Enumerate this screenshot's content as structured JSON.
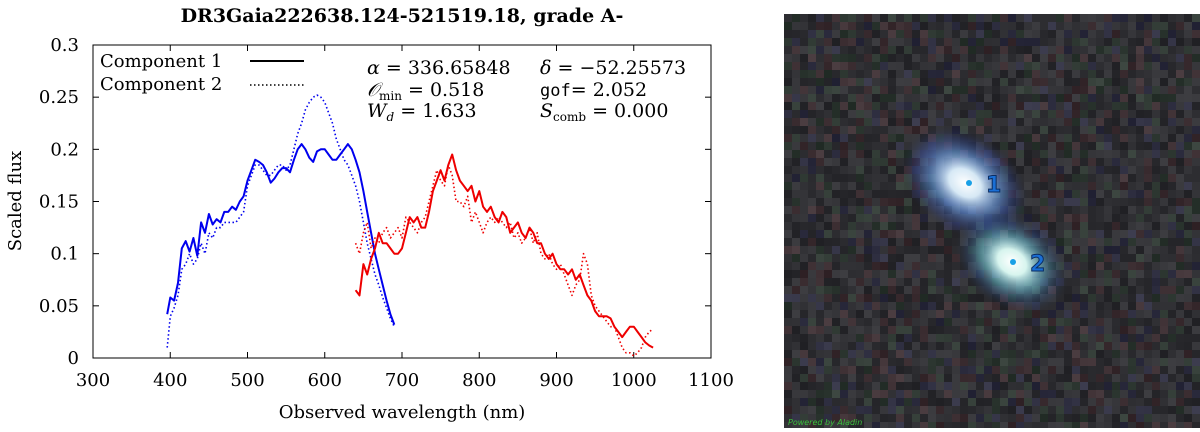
{
  "chart_data": {
    "type": "line",
    "title": "DR3Gaia222638.124-521519.18, grade A-",
    "xlabel": "Observed wavelength (nm)",
    "ylabel": "Scaled flux",
    "xlim": [
      300,
      1100
    ],
    "ylim": [
      0,
      0.3
    ],
    "x_ticks": [
      300,
      400,
      500,
      600,
      700,
      800,
      900,
      1000,
      1100
    ],
    "y_ticks": [
      0,
      0.05,
      0.1,
      0.15,
      0.2,
      0.25,
      0.3
    ],
    "x_tick_labels": [
      "300",
      "400",
      "500",
      "600",
      "700",
      "800",
      "900",
      "1000",
      "1100"
    ],
    "y_tick_labels": [
      "0",
      "0.05",
      "0.1",
      "0.15",
      "0.2",
      "0.25",
      "0.3"
    ],
    "grid": false,
    "legend_position": "top-left",
    "legend": [
      {
        "name": "Component 1",
        "style": "solid"
      },
      {
        "name": "Component 2",
        "style": "dotted"
      }
    ],
    "annotations": {
      "alpha_value": "336.65848",
      "delta_value": "−52.25573",
      "omin_value": "0.518",
      "gof_value": "2.052",
      "wd_value": "1.633",
      "scomb_value": "0.000"
    },
    "series": [
      {
        "name": "Component 1",
        "color": "#0000ee",
        "style": "solid",
        "x": [
          396,
          400,
          405,
          410,
          415,
          420,
          425,
          430,
          435,
          440,
          445,
          450,
          455,
          460,
          465,
          470,
          475,
          480,
          485,
          490,
          495,
          500,
          505,
          510,
          515,
          520,
          525,
          530,
          535,
          540,
          545,
          550,
          555,
          560,
          565,
          570,
          575,
          580,
          585,
          590,
          595,
          600,
          605,
          610,
          615,
          620,
          625,
          630,
          635,
          640,
          645,
          650,
          655,
          660,
          665,
          670,
          675,
          680,
          685,
          690
        ],
        "y": [
          0.042,
          0.058,
          0.055,
          0.072,
          0.105,
          0.112,
          0.102,
          0.115,
          0.098,
          0.13,
          0.12,
          0.138,
          0.128,
          0.133,
          0.13,
          0.14,
          0.14,
          0.145,
          0.142,
          0.15,
          0.155,
          0.17,
          0.18,
          0.19,
          0.188,
          0.185,
          0.178,
          0.168,
          0.172,
          0.178,
          0.182,
          0.182,
          0.178,
          0.19,
          0.2,
          0.205,
          0.2,
          0.192,
          0.188,
          0.198,
          0.2,
          0.2,
          0.195,
          0.19,
          0.19,
          0.195,
          0.2,
          0.205,
          0.2,
          0.19,
          0.178,
          0.16,
          0.14,
          0.12,
          0.1,
          0.085,
          0.07,
          0.055,
          0.042,
          0.032
        ]
      },
      {
        "name": "Component 2",
        "color": "#0000ee",
        "style": "dotted",
        "x": [
          396,
          400,
          405,
          410,
          415,
          420,
          425,
          430,
          435,
          440,
          445,
          450,
          455,
          460,
          465,
          470,
          475,
          480,
          485,
          490,
          495,
          500,
          505,
          510,
          515,
          520,
          525,
          530,
          535,
          540,
          545,
          550,
          555,
          560,
          565,
          570,
          575,
          580,
          585,
          590,
          595,
          600,
          605,
          610,
          615,
          620,
          625,
          630,
          635,
          640,
          645,
          650,
          655,
          660,
          665,
          670,
          675,
          680,
          685,
          690
        ],
        "y": [
          0.01,
          0.04,
          0.048,
          0.06,
          0.085,
          0.09,
          0.1,
          0.09,
          0.095,
          0.11,
          0.1,
          0.12,
          0.115,
          0.125,
          0.125,
          0.13,
          0.13,
          0.13,
          0.13,
          0.135,
          0.14,
          0.165,
          0.175,
          0.185,
          0.185,
          0.18,
          0.175,
          0.175,
          0.18,
          0.185,
          0.185,
          0.18,
          0.185,
          0.2,
          0.215,
          0.225,
          0.238,
          0.245,
          0.25,
          0.252,
          0.25,
          0.245,
          0.235,
          0.225,
          0.21,
          0.2,
          0.19,
          0.185,
          0.175,
          0.165,
          0.15,
          0.13,
          0.11,
          0.095,
          0.08,
          0.07,
          0.058,
          0.048,
          0.038,
          0.03
        ]
      },
      {
        "name": "",
        "color": "#ee0000",
        "style": "solid",
        "x": [
          640,
          645,
          650,
          655,
          660,
          665,
          670,
          675,
          680,
          685,
          690,
          695,
          700,
          705,
          710,
          715,
          720,
          725,
          730,
          735,
          740,
          745,
          750,
          755,
          760,
          765,
          770,
          775,
          780,
          785,
          790,
          795,
          800,
          805,
          810,
          815,
          820,
          825,
          830,
          835,
          840,
          845,
          850,
          855,
          860,
          865,
          870,
          875,
          880,
          885,
          890,
          895,
          900,
          905,
          910,
          915,
          920,
          925,
          930,
          935,
          940,
          945,
          950,
          955,
          960,
          965,
          970,
          975,
          980,
          985,
          990,
          995,
          1000,
          1005,
          1010,
          1015,
          1020,
          1025
        ],
        "y": [
          0.065,
          0.06,
          0.09,
          0.08,
          0.095,
          0.105,
          0.12,
          0.11,
          0.11,
          0.105,
          0.1,
          0.1,
          0.105,
          0.12,
          0.135,
          0.13,
          0.135,
          0.125,
          0.125,
          0.14,
          0.16,
          0.17,
          0.18,
          0.17,
          0.185,
          0.195,
          0.18,
          0.17,
          0.165,
          0.16,
          0.165,
          0.15,
          0.16,
          0.145,
          0.14,
          0.145,
          0.135,
          0.13,
          0.14,
          0.135,
          0.12,
          0.125,
          0.13,
          0.12,
          0.115,
          0.125,
          0.12,
          0.11,
          0.11,
          0.1,
          0.095,
          0.1,
          0.09,
          0.085,
          0.085,
          0.08,
          0.085,
          0.075,
          0.08,
          0.07,
          0.06,
          0.055,
          0.045,
          0.04,
          0.04,
          0.04,
          0.038,
          0.03,
          0.025,
          0.02,
          0.025,
          0.03,
          0.03,
          0.025,
          0.02,
          0.015,
          0.012,
          0.01
        ]
      },
      {
        "name": "",
        "color": "#ee0000",
        "style": "dotted",
        "x": [
          640,
          645,
          650,
          655,
          660,
          665,
          670,
          675,
          680,
          685,
          690,
          695,
          700,
          705,
          710,
          715,
          720,
          725,
          730,
          735,
          740,
          745,
          750,
          755,
          760,
          765,
          770,
          775,
          780,
          785,
          790,
          795,
          800,
          805,
          810,
          815,
          820,
          825,
          830,
          835,
          840,
          845,
          850,
          855,
          860,
          865,
          870,
          875,
          880,
          885,
          890,
          895,
          900,
          905,
          910,
          915,
          920,
          925,
          930,
          935,
          940,
          945,
          950,
          955,
          960,
          965,
          970,
          975,
          980,
          985,
          990,
          995,
          1000,
          1005,
          1010,
          1015,
          1020,
          1025
        ],
        "y": [
          0.11,
          0.1,
          0.12,
          0.13,
          0.105,
          0.115,
          0.11,
          0.12,
          0.125,
          0.115,
          0.12,
          0.125,
          0.115,
          0.135,
          0.13,
          0.125,
          0.12,
          0.13,
          0.135,
          0.15,
          0.165,
          0.18,
          0.17,
          0.165,
          0.185,
          0.175,
          0.15,
          0.15,
          0.145,
          0.155,
          0.13,
          0.14,
          0.13,
          0.12,
          0.13,
          0.135,
          0.13,
          0.135,
          0.13,
          0.125,
          0.13,
          0.115,
          0.12,
          0.11,
          0.115,
          0.125,
          0.11,
          0.12,
          0.1,
          0.095,
          0.1,
          0.09,
          0.085,
          0.09,
          0.08,
          0.07,
          0.06,
          0.07,
          0.075,
          0.1,
          0.09,
          0.06,
          0.05,
          0.045,
          0.04,
          0.035,
          0.03,
          0.03,
          0.02,
          0.01,
          0.005,
          0.005,
          0.002,
          0.005,
          0.01,
          0.02,
          0.025,
          0.028
        ]
      }
    ]
  },
  "sky_image": {
    "watermark": "Powered by Aladin",
    "labels": [
      {
        "text": "1"
      },
      {
        "text": "2"
      }
    ],
    "label_color": "#1a6fd6",
    "marker_color": "#1aa0e6",
    "glow_color": "#d9f0ff"
  }
}
